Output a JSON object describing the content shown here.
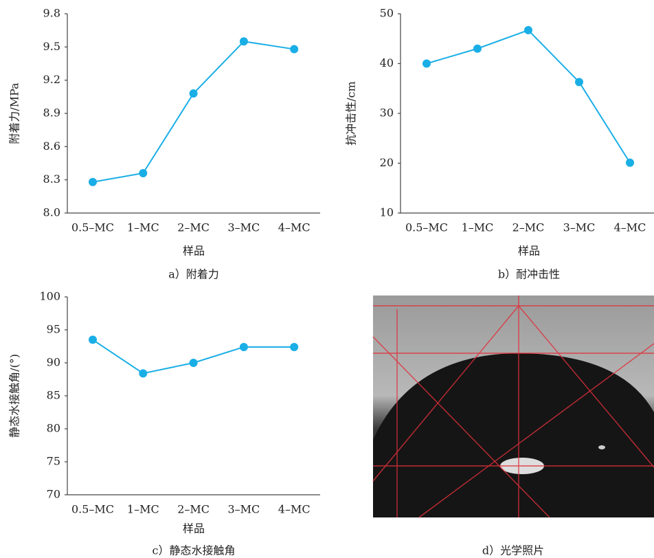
{
  "chart_data": [
    {
      "type": "line",
      "title": "a）附着力",
      "x_label": "样品",
      "y_label": "附着力/MPa",
      "categories": [
        "0.5–MC",
        "1–MC",
        "2–MC",
        "3–MC",
        "4–MC"
      ],
      "values": [
        8.28,
        8.36,
        9.08,
        9.55,
        9.48
      ],
      "color": "#19aee6",
      "ylim": [
        8.0,
        9.8
      ],
      "yticks": [
        {
          "value": 8,
          "label": "8.0"
        },
        8.3,
        8.6,
        8.9,
        9.2,
        9.5,
        9.8
      ]
    },
    {
      "type": "line",
      "title": "b）耐冲击性",
      "x_label": "样品",
      "y_label": "抗冲击性/cm",
      "categories": [
        "0.5–MC",
        "1–MC",
        "2–MC",
        "3–MC",
        "4–MC"
      ],
      "values": [
        40,
        43,
        46.7,
        36.3,
        20.1
      ],
      "color": "#19aee6",
      "ylim": [
        10,
        50
      ],
      "yticks": [
        10,
        20,
        30,
        40,
        50
      ]
    },
    {
      "type": "line",
      "title": "c）静态水接触角",
      "x_label": "样品",
      "y_label": "静态水接触角/(°)",
      "categories": [
        "0.5–MC",
        "1–MC",
        "2–MC",
        "3–MC",
        "4–MC"
      ],
      "values": [
        93.5,
        88.4,
        90.0,
        92.4,
        92.4
      ],
      "color": "#19aee6",
      "ylim": [
        70,
        100
      ],
      "yticks": [
        70,
        75,
        80,
        85,
        90,
        95,
        100
      ]
    }
  ],
  "photo": {
    "caption": "d）光学照片"
  }
}
